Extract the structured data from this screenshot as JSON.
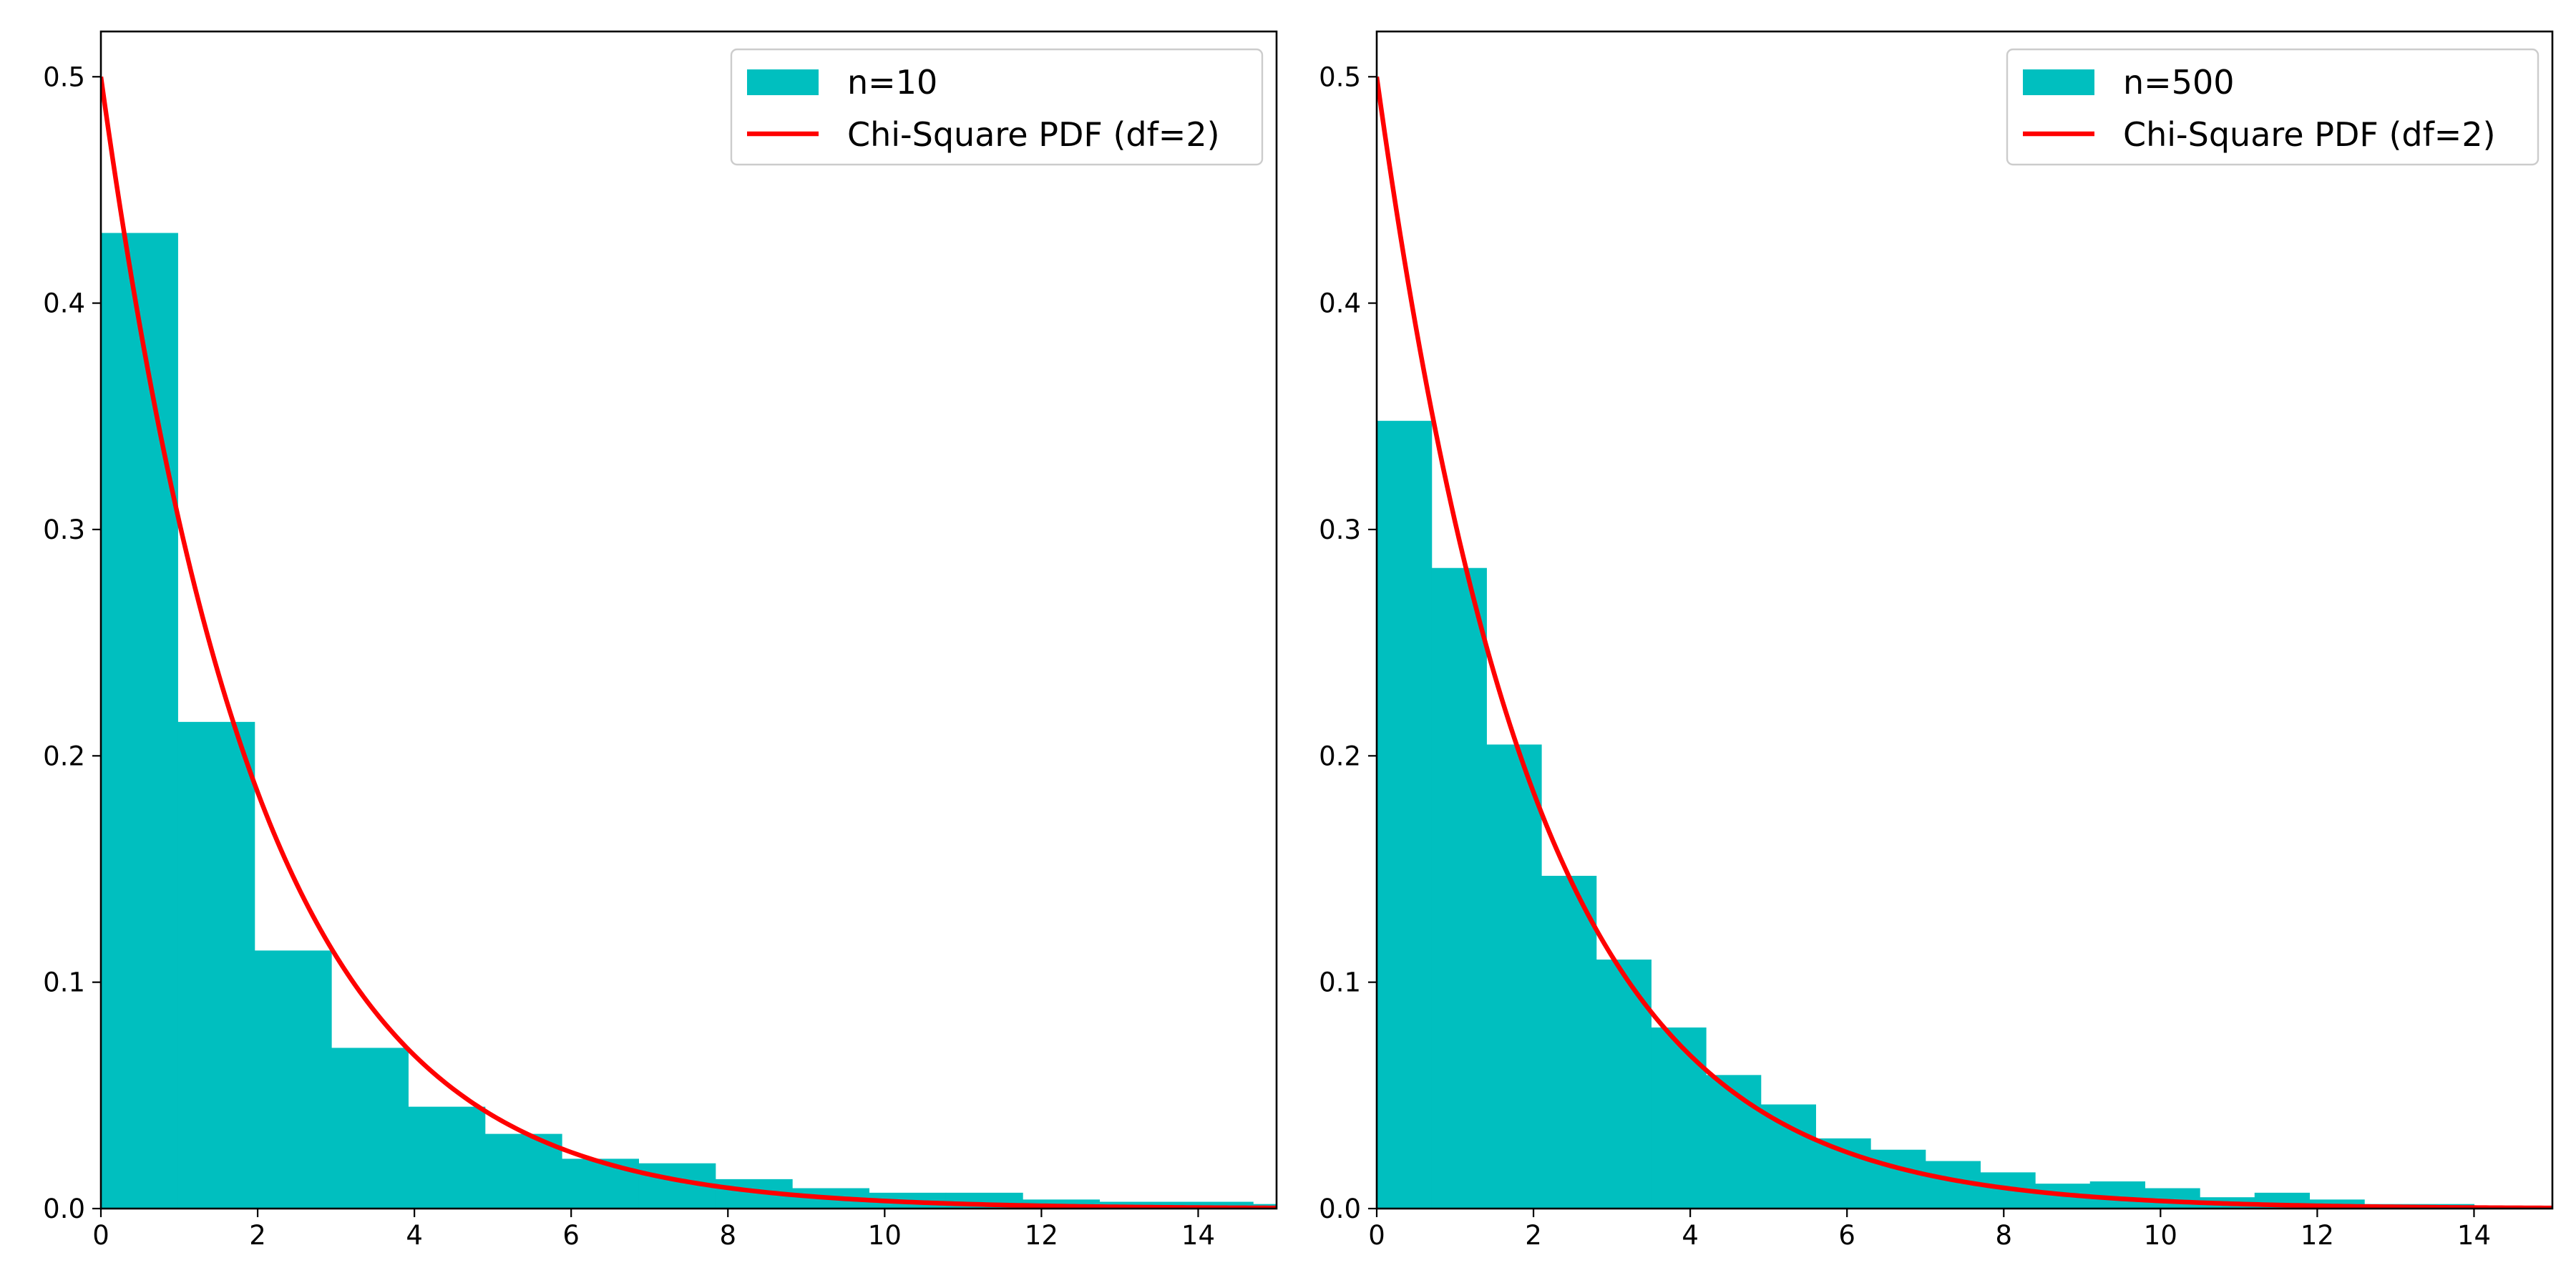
{
  "colors": {
    "bar": "#00BFBF",
    "pdf_line": "#FF0000"
  },
  "chart_data": [
    {
      "type": "bar",
      "panel": "left",
      "xlim": [
        0,
        15
      ],
      "ylim": [
        0,
        0.52
      ],
      "xticks": [
        0,
        2,
        4,
        6,
        8,
        10,
        12,
        14
      ],
      "yticks": [
        0.0,
        0.1,
        0.2,
        0.3,
        0.4,
        0.5
      ],
      "legend_position": "upper right",
      "bins": [
        {
          "x0": 0.0,
          "x1": 0.98,
          "y": 0.431
        },
        {
          "x0": 0.98,
          "x1": 1.96,
          "y": 0.215
        },
        {
          "x0": 1.96,
          "x1": 2.94,
          "y": 0.114
        },
        {
          "x0": 2.94,
          "x1": 3.92,
          "y": 0.071
        },
        {
          "x0": 3.92,
          "x1": 4.9,
          "y": 0.045
        },
        {
          "x0": 4.9,
          "x1": 5.88,
          "y": 0.033
        },
        {
          "x0": 5.88,
          "x1": 6.86,
          "y": 0.022
        },
        {
          "x0": 6.86,
          "x1": 7.84,
          "y": 0.02
        },
        {
          "x0": 7.84,
          "x1": 8.82,
          "y": 0.013
        },
        {
          "x0": 8.82,
          "x1": 9.8,
          "y": 0.009
        },
        {
          "x0": 9.8,
          "x1": 10.78,
          "y": 0.007
        },
        {
          "x0": 10.78,
          "x1": 11.76,
          "y": 0.007
        },
        {
          "x0": 11.76,
          "x1": 12.74,
          "y": 0.004
        },
        {
          "x0": 12.74,
          "x1": 13.72,
          "y": 0.003
        },
        {
          "x0": 13.72,
          "x1": 14.7,
          "y": 0.003
        },
        {
          "x0": 14.7,
          "x1": 15.68,
          "y": 0.002
        }
      ],
      "series": [
        {
          "name": "n=10",
          "kind": "histogram"
        },
        {
          "name": "Chi-Square PDF (df=2)",
          "kind": "line",
          "function": "0.5*exp(-x/2)",
          "x_range": [
            0,
            15
          ]
        }
      ]
    },
    {
      "type": "bar",
      "panel": "right",
      "xlim": [
        0,
        15
      ],
      "ylim": [
        0,
        0.52
      ],
      "xticks": [
        0,
        2,
        4,
        6,
        8,
        10,
        12,
        14
      ],
      "yticks": [
        0.0,
        0.1,
        0.2,
        0.3,
        0.4,
        0.5
      ],
      "legend_position": "upper right",
      "bins": [
        {
          "x0": 0.0,
          "x1": 0.7,
          "y": 0.348
        },
        {
          "x0": 0.7,
          "x1": 1.4,
          "y": 0.283
        },
        {
          "x0": 1.4,
          "x1": 2.1,
          "y": 0.205
        },
        {
          "x0": 2.1,
          "x1": 2.8,
          "y": 0.147
        },
        {
          "x0": 2.8,
          "x1": 3.5,
          "y": 0.11
        },
        {
          "x0": 3.5,
          "x1": 4.2,
          "y": 0.08
        },
        {
          "x0": 4.2,
          "x1": 4.9,
          "y": 0.059
        },
        {
          "x0": 4.9,
          "x1": 5.6,
          "y": 0.046
        },
        {
          "x0": 5.6,
          "x1": 6.3,
          "y": 0.031
        },
        {
          "x0": 6.3,
          "x1": 7.0,
          "y": 0.026
        },
        {
          "x0": 7.0,
          "x1": 7.7,
          "y": 0.021
        },
        {
          "x0": 7.7,
          "x1": 8.4,
          "y": 0.016
        },
        {
          "x0": 8.4,
          "x1": 9.1,
          "y": 0.011
        },
        {
          "x0": 9.1,
          "x1": 9.8,
          "y": 0.012
        },
        {
          "x0": 9.8,
          "x1": 10.5,
          "y": 0.009
        },
        {
          "x0": 10.5,
          "x1": 11.2,
          "y": 0.005
        },
        {
          "x0": 11.2,
          "x1": 11.9,
          "y": 0.007
        },
        {
          "x0": 11.9,
          "x1": 12.6,
          "y": 0.004
        },
        {
          "x0": 12.6,
          "x1": 13.3,
          "y": 0.002
        },
        {
          "x0": 13.3,
          "x1": 14.0,
          "y": 0.002
        },
        {
          "x0": 14.0,
          "x1": 14.7,
          "y": 0.001
        },
        {
          "x0": 14.7,
          "x1": 15.4,
          "y": 0.001
        }
      ],
      "series": [
        {
          "name": "n=500",
          "kind": "histogram"
        },
        {
          "name": "Chi-Square PDF (df=2)",
          "kind": "line",
          "function": "0.5*exp(-x/2)",
          "x_range": [
            0,
            15
          ]
        }
      ]
    }
  ]
}
